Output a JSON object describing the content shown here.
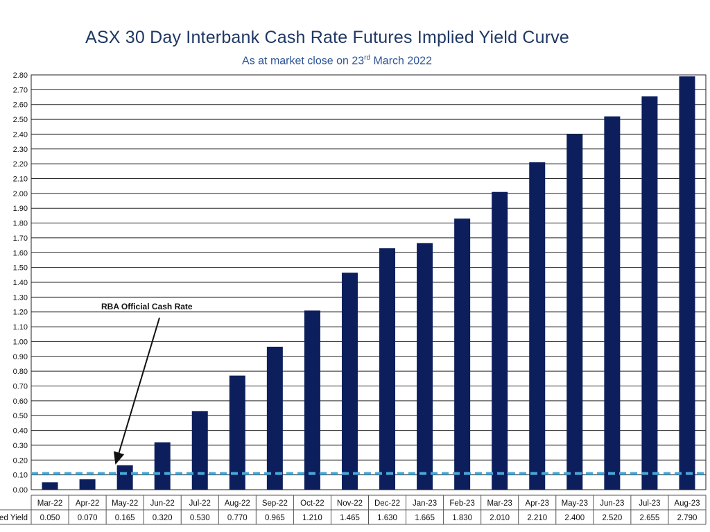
{
  "chart_data": {
    "type": "bar",
    "title": "ASX 30 Day Interbank Cash Rate Futures Implied Yield Curve",
    "subtitle_prefix": "As at market close on 23",
    "subtitle_sup": "rd",
    "subtitle_suffix": " March 2022",
    "categories": [
      "Mar-22",
      "Apr-22",
      "May-22",
      "Jun-22",
      "Jul-22",
      "Aug-22",
      "Sep-22",
      "Oct-22",
      "Nov-22",
      "Dec-22",
      "Jan-23",
      "Feb-23",
      "Mar-23",
      "Apr-23",
      "May-23",
      "Jun-23",
      "Jul-23",
      "Aug-23"
    ],
    "series": [
      {
        "name": "Implied Yield",
        "values": [
          0.05,
          0.07,
          0.165,
          0.32,
          0.53,
          0.77,
          0.965,
          1.21,
          1.465,
          1.63,
          1.665,
          1.83,
          2.01,
          2.21,
          2.4,
          2.52,
          2.655,
          2.79
        ],
        "labels": [
          "0.050",
          "0.070",
          "0.165",
          "0.320",
          "0.530",
          "0.770",
          "0.965",
          "1.210",
          "1.465",
          "1.630",
          "1.665",
          "1.830",
          "2.010",
          "2.210",
          "2.400",
          "2.520",
          "2.655",
          "2.790"
        ],
        "color": "#0c1f5c"
      }
    ],
    "table_row_label": "Implied Yield",
    "ylim": [
      0,
      2.8
    ],
    "ytick_labels": [
      "0.00",
      "0.10",
      "0.20",
      "0.30",
      "0.40",
      "0.50",
      "0.60",
      "0.70",
      "0.80",
      "0.90",
      "1.00",
      "1.10",
      "1.20",
      "1.30",
      "1.40",
      "1.50",
      "1.60",
      "1.70",
      "1.80",
      "1.90",
      "2.00",
      "2.10",
      "2.20",
      "2.30",
      "2.40",
      "2.50",
      "2.60",
      "2.70",
      "2.80"
    ],
    "grid": true,
    "reference_line": {
      "label": "RBA Official Cash Rate",
      "value": 0.1,
      "color": "#4aa8d8"
    },
    "colors": {
      "title": "#1f3864",
      "subtitle": "#2e5597",
      "bar": "#0c1f5c",
      "grid": "#222222"
    }
  }
}
